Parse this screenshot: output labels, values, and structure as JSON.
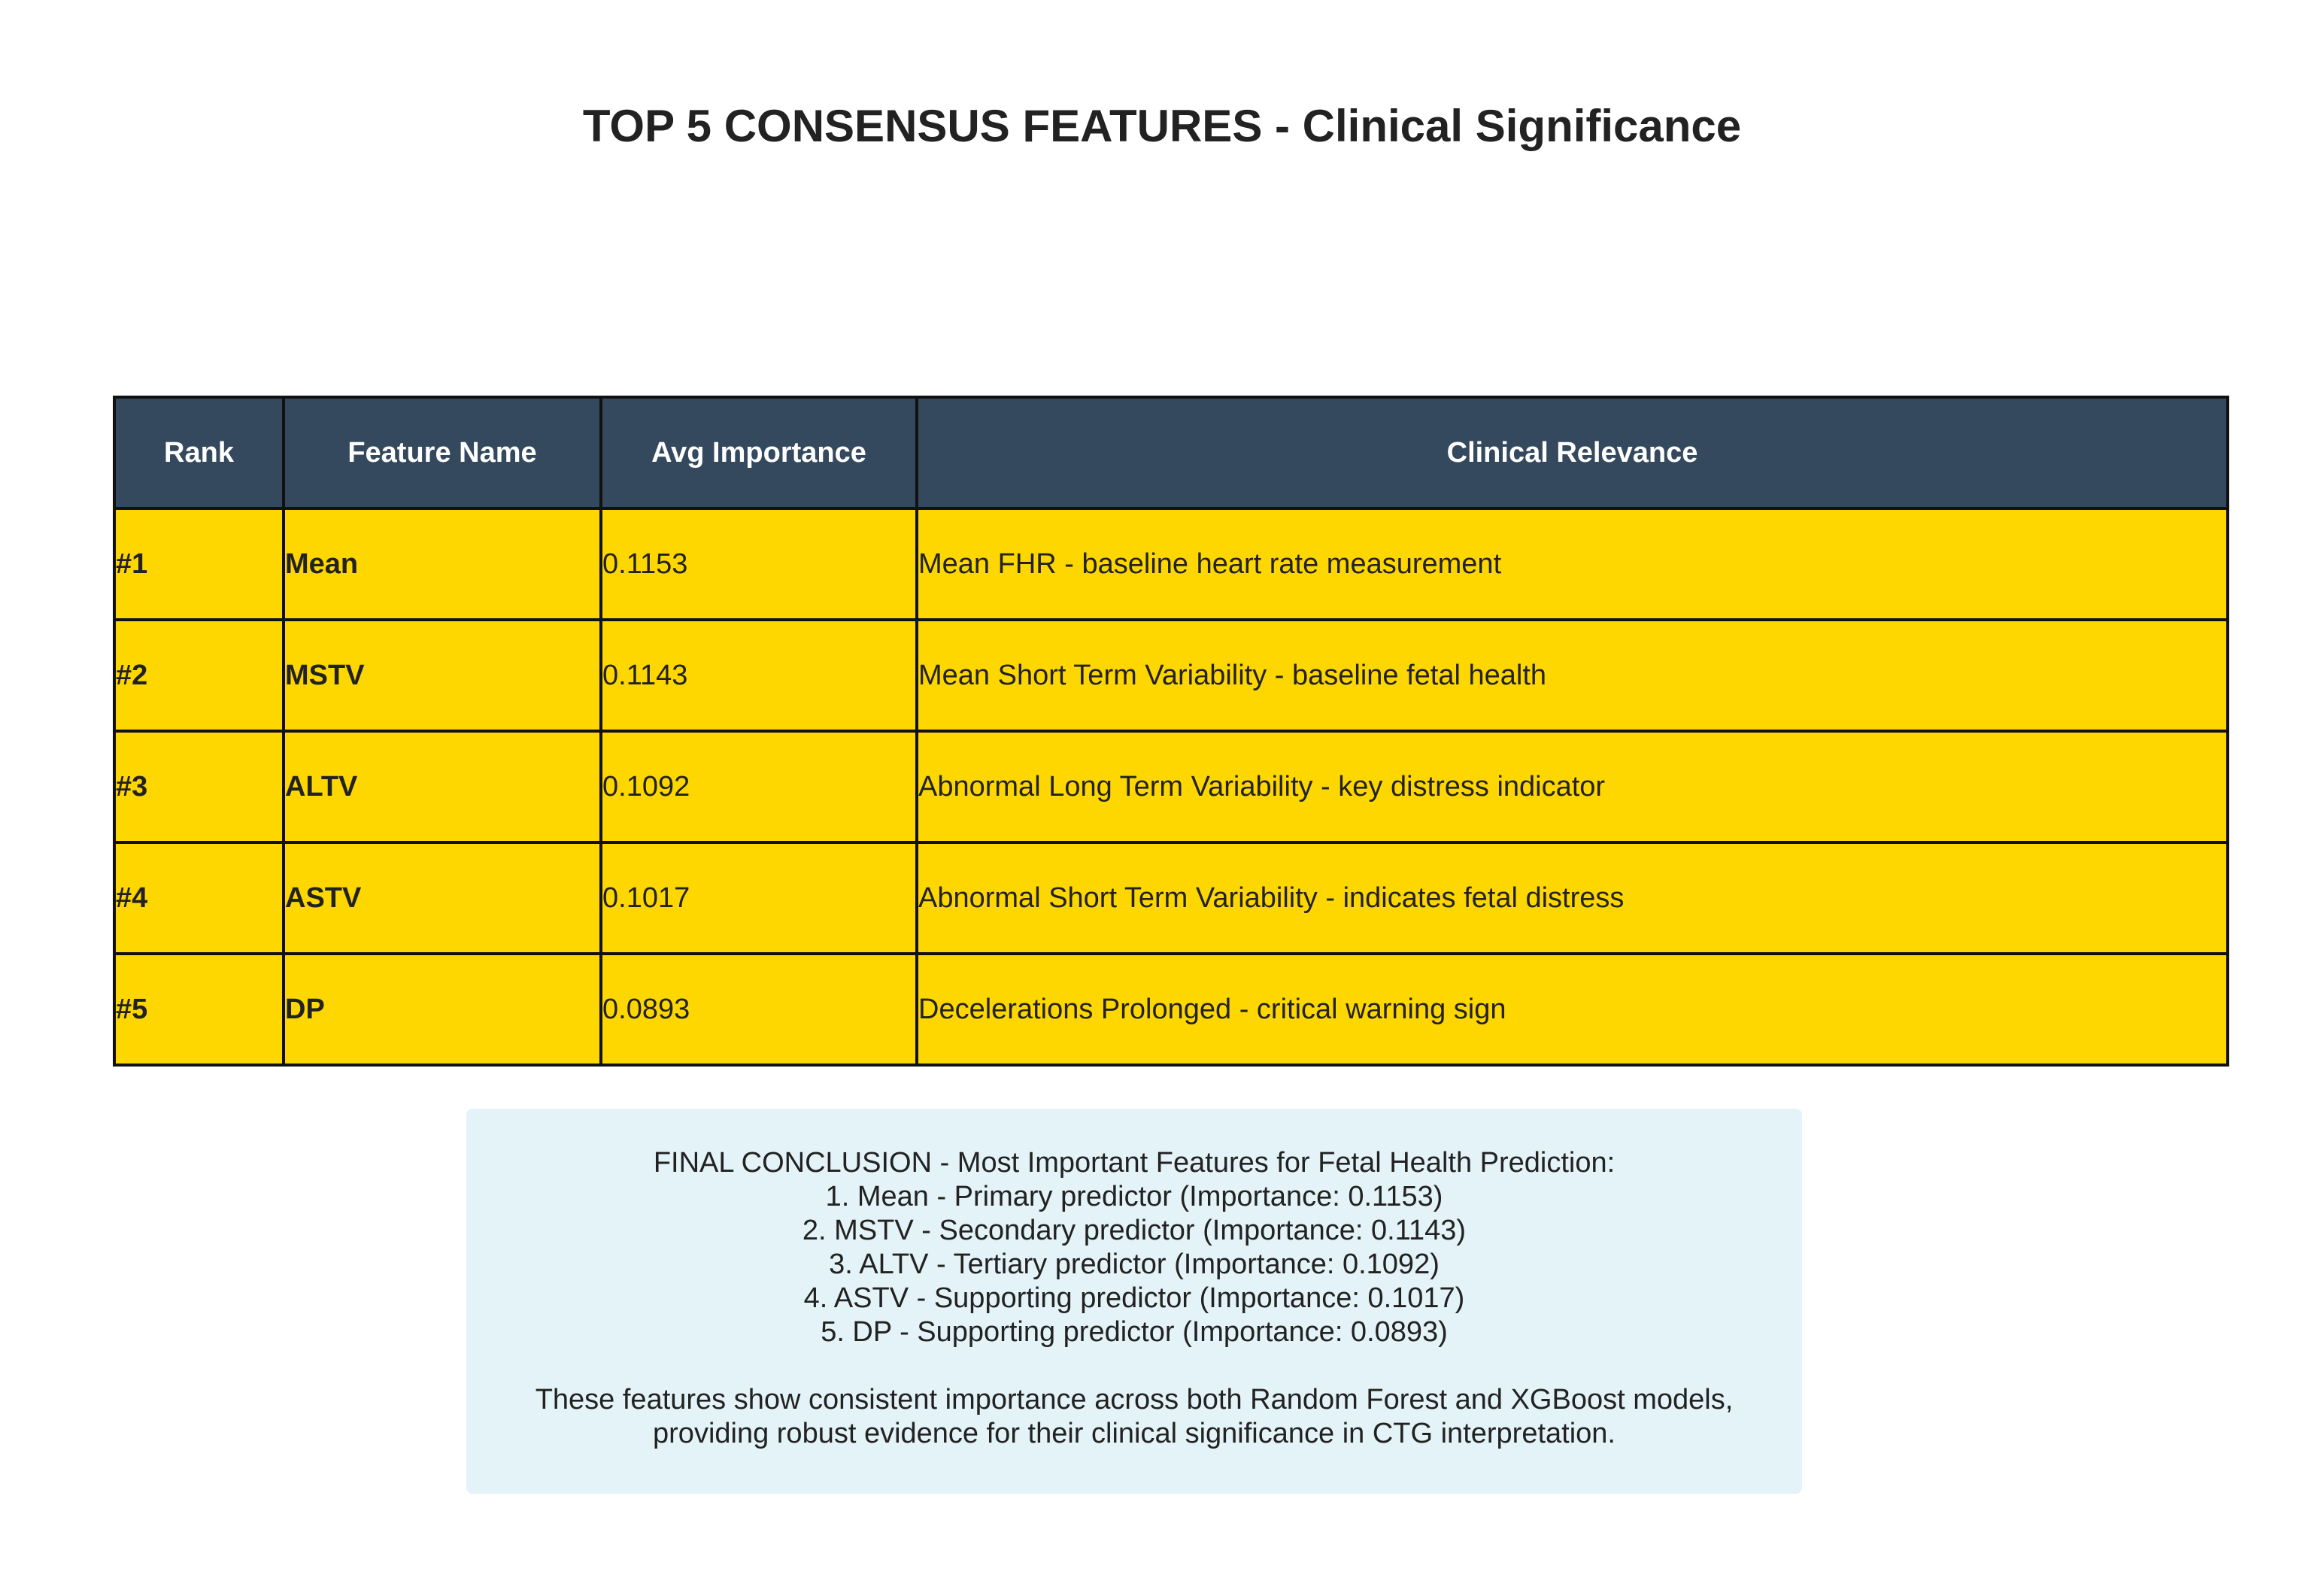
{
  "title": "TOP 5 CONSENSUS FEATURES - Clinical Significance",
  "chart_data": {
    "type": "table",
    "title": "TOP 5 CONSENSUS FEATURES - Clinical Significance",
    "columns": [
      "Rank",
      "Feature Name",
      "Avg Importance",
      "Clinical Relevance"
    ],
    "rows": [
      {
        "rank": "#1",
        "feature": "Mean",
        "importance": "0.1153",
        "relevance": "Mean FHR - baseline heart rate measurement"
      },
      {
        "rank": "#2",
        "feature": "MSTV",
        "importance": "0.1143",
        "relevance": "Mean Short Term Variability - baseline fetal health"
      },
      {
        "rank": "#3",
        "feature": "ALTV",
        "importance": "0.1092",
        "relevance": "Abnormal Long Term Variability - key distress indicator"
      },
      {
        "rank": "#4",
        "feature": "ASTV",
        "importance": "0.1017",
        "relevance": "Abnormal Short Term Variability - indicates fetal distress"
      },
      {
        "rank": "#5",
        "feature": "DP",
        "importance": "0.0893",
        "relevance": "Decelerations Prolonged - critical warning sign"
      }
    ]
  },
  "colors": {
    "header_bg": "#34495e",
    "row_bg": "#ffd700",
    "conclusion_bg": "#e4f3f7"
  },
  "conclusion": {
    "lines": [
      "FINAL CONCLUSION - Most Important Features for Fetal Health Prediction:",
      "1. Mean - Primary predictor (Importance: 0.1153)",
      "2. MSTV - Secondary predictor (Importance: 0.1143)",
      "3. ALTV - Tertiary predictor (Importance: 0.1092)",
      "4. ASTV - Supporting predictor (Importance: 0.1017)",
      "5. DP - Supporting predictor (Importance: 0.0893)"
    ],
    "footer_lines": [
      "These features show consistent importance across both Random Forest and XGBoost models,",
      "providing robust evidence for their clinical significance in CTG interpretation."
    ]
  }
}
